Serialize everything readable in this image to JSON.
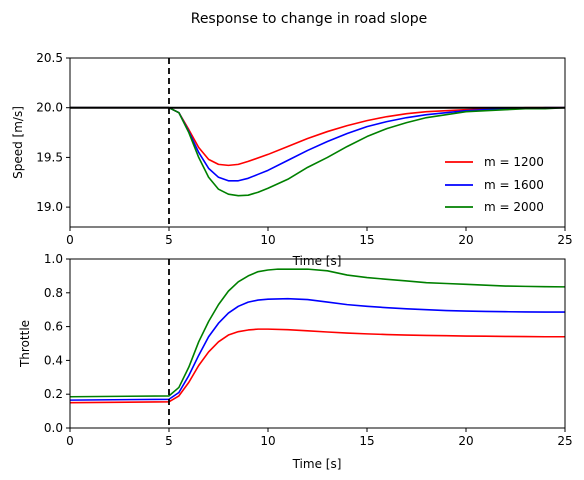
{
  "chart_data": [
    {
      "type": "line",
      "title": "Response to change in road slope",
      "xlabel": "Time [s]",
      "ylabel": "Speed [m/s]",
      "xlim": [
        0,
        25
      ],
      "ylim": [
        18.8,
        20.5
      ],
      "xticks": [
        "0",
        "5",
        "10",
        "15",
        "20",
        "25"
      ],
      "yticks": [
        "19.0",
        "19.5",
        "20.0",
        "20.5"
      ],
      "legend_position": "lower-right",
      "vline_x": 5,
      "reference_y": 20.0,
      "reference_color": "#000000",
      "series": [
        {
          "name": "m = 1200",
          "color": "#ff0000",
          "x": [
            0,
            5,
            5.5,
            6,
            6.5,
            7,
            7.5,
            8,
            8.5,
            9,
            10,
            11,
            12,
            13,
            14,
            15,
            16,
            17,
            18,
            19,
            20,
            21,
            22,
            23,
            24,
            25
          ],
          "y": [
            20.0,
            20.0,
            19.95,
            19.78,
            19.6,
            19.48,
            19.43,
            19.42,
            19.43,
            19.46,
            19.53,
            19.61,
            19.69,
            19.76,
            19.82,
            19.87,
            19.91,
            19.94,
            19.96,
            19.97,
            19.98,
            19.99,
            19.99,
            20.0,
            20.0,
            20.0
          ]
        },
        {
          "name": "m = 1600",
          "color": "#0000ff",
          "x": [
            0,
            5,
            5.5,
            6,
            6.5,
            7,
            7.5,
            8,
            8.5,
            9,
            9.5,
            10,
            11,
            12,
            13,
            14,
            15,
            16,
            17,
            18,
            19,
            20,
            21,
            22,
            23,
            24,
            25
          ],
          "y": [
            20.0,
            20.0,
            19.95,
            19.76,
            19.55,
            19.39,
            19.3,
            19.265,
            19.265,
            19.29,
            19.33,
            19.37,
            19.47,
            19.57,
            19.66,
            19.74,
            19.81,
            19.86,
            19.9,
            19.93,
            19.95,
            19.97,
            19.98,
            19.99,
            19.99,
            20.0,
            20.0
          ]
        },
        {
          "name": "m = 2000",
          "color": "#008000",
          "x": [
            0,
            5,
            5.5,
            6,
            6.5,
            7,
            7.5,
            8,
            8.5,
            9,
            9.5,
            10,
            11,
            12,
            13,
            14,
            15,
            16,
            17,
            18,
            19,
            20,
            21,
            22,
            23,
            24,
            25
          ],
          "y": [
            20.0,
            20.0,
            19.95,
            19.75,
            19.5,
            19.3,
            19.18,
            19.13,
            19.115,
            19.12,
            19.15,
            19.19,
            19.28,
            19.4,
            19.5,
            19.61,
            19.71,
            19.79,
            19.85,
            19.9,
            19.93,
            19.96,
            19.97,
            19.98,
            19.99,
            19.99,
            20.0
          ]
        }
      ]
    },
    {
      "type": "line",
      "title": "",
      "xlabel": "Time [s]",
      "ylabel": "Throttle",
      "xlim": [
        0,
        25
      ],
      "ylim": [
        0.0,
        1.0
      ],
      "xticks": [
        "0",
        "5",
        "10",
        "15",
        "20",
        "25"
      ],
      "yticks": [
        "0.0",
        "0.2",
        "0.4",
        "0.6",
        "0.8",
        "1.0"
      ],
      "vline_x": 5,
      "series": [
        {
          "color": "#ff0000",
          "x": [
            0,
            5,
            5.5,
            6,
            6.5,
            7,
            7.5,
            8,
            8.5,
            9,
            9.5,
            10,
            11,
            12,
            13,
            14,
            15,
            16,
            17,
            18,
            19,
            20,
            21,
            22,
            23,
            24,
            25
          ],
          "y": [
            0.15,
            0.155,
            0.19,
            0.27,
            0.37,
            0.45,
            0.51,
            0.55,
            0.57,
            0.58,
            0.585,
            0.585,
            0.582,
            0.575,
            0.568,
            0.562,
            0.557,
            0.553,
            0.55,
            0.548,
            0.546,
            0.544,
            0.543,
            0.542,
            0.541,
            0.54,
            0.54
          ]
        },
        {
          "color": "#0000ff",
          "x": [
            0,
            5,
            5.5,
            6,
            6.5,
            7,
            7.5,
            8,
            8.5,
            9,
            9.5,
            10,
            11,
            12,
            13,
            14,
            15,
            16,
            17,
            18,
            19,
            20,
            21,
            22,
            23,
            24,
            25
          ],
          "y": [
            0.165,
            0.17,
            0.21,
            0.31,
            0.43,
            0.54,
            0.62,
            0.68,
            0.72,
            0.745,
            0.757,
            0.762,
            0.765,
            0.76,
            0.745,
            0.73,
            0.72,
            0.712,
            0.705,
            0.7,
            0.695,
            0.692,
            0.69,
            0.688,
            0.687,
            0.686,
            0.686
          ]
        },
        {
          "color": "#008000",
          "x": [
            0,
            5,
            5.5,
            6,
            6.5,
            7,
            7.5,
            8,
            8.5,
            9,
            9.5,
            10,
            10.5,
            11,
            12,
            13,
            14,
            15,
            16,
            17,
            18,
            19,
            20,
            21,
            22,
            23,
            24,
            25
          ],
          "y": [
            0.185,
            0.19,
            0.24,
            0.36,
            0.51,
            0.63,
            0.73,
            0.81,
            0.865,
            0.9,
            0.925,
            0.935,
            0.94,
            0.94,
            0.94,
            0.93,
            0.905,
            0.89,
            0.88,
            0.87,
            0.86,
            0.855,
            0.85,
            0.845,
            0.84,
            0.838,
            0.836,
            0.835
          ]
        }
      ]
    }
  ]
}
